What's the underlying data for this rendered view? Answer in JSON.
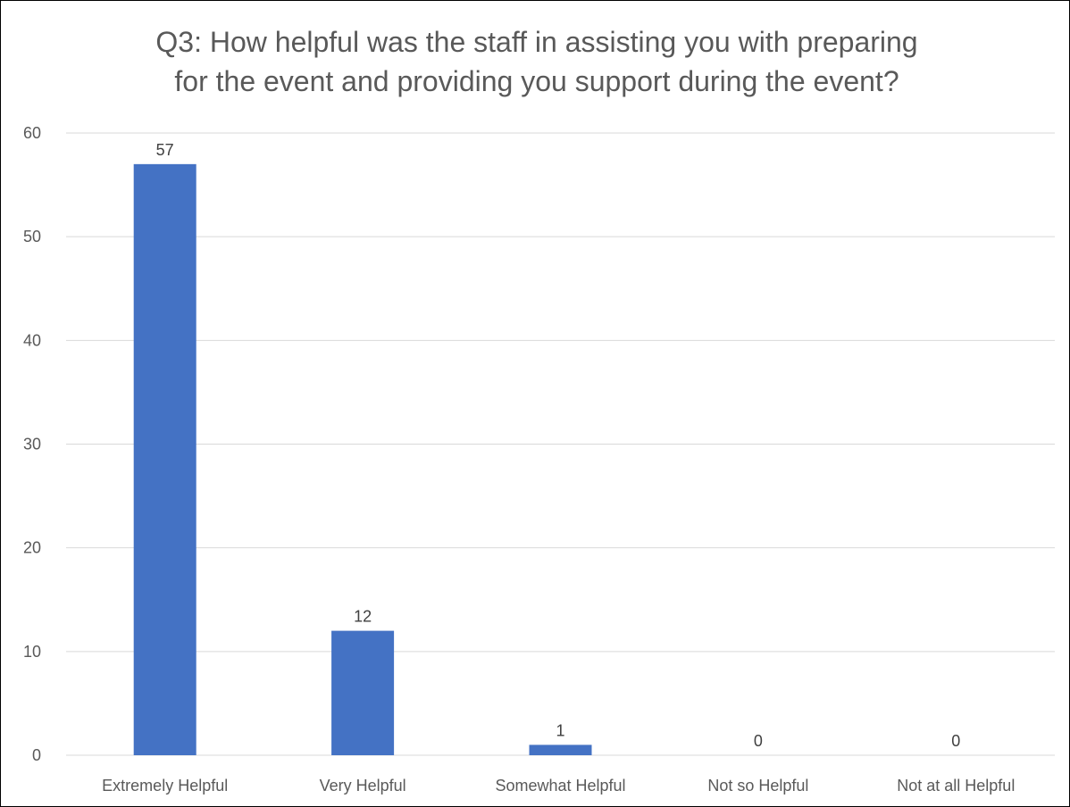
{
  "chart_data": {
    "type": "bar",
    "title_lines": [
      "Q3: How helpful was the staff in assisting you with preparing",
      "for the event and providing you support during the event?"
    ],
    "categories": [
      "Extremely Helpful",
      "Very Helpful",
      "Somewhat Helpful",
      "Not so Helpful",
      "Not at all Helpful"
    ],
    "values": [
      57,
      12,
      1,
      0,
      0
    ],
    "ylim": [
      0,
      60
    ],
    "yticks": [
      0,
      10,
      20,
      30,
      40,
      50,
      60
    ],
    "grid": true,
    "legend": "none",
    "colors": {
      "bar": "#4472C4",
      "grid": "#D9D9D9",
      "text": "#595959"
    }
  }
}
